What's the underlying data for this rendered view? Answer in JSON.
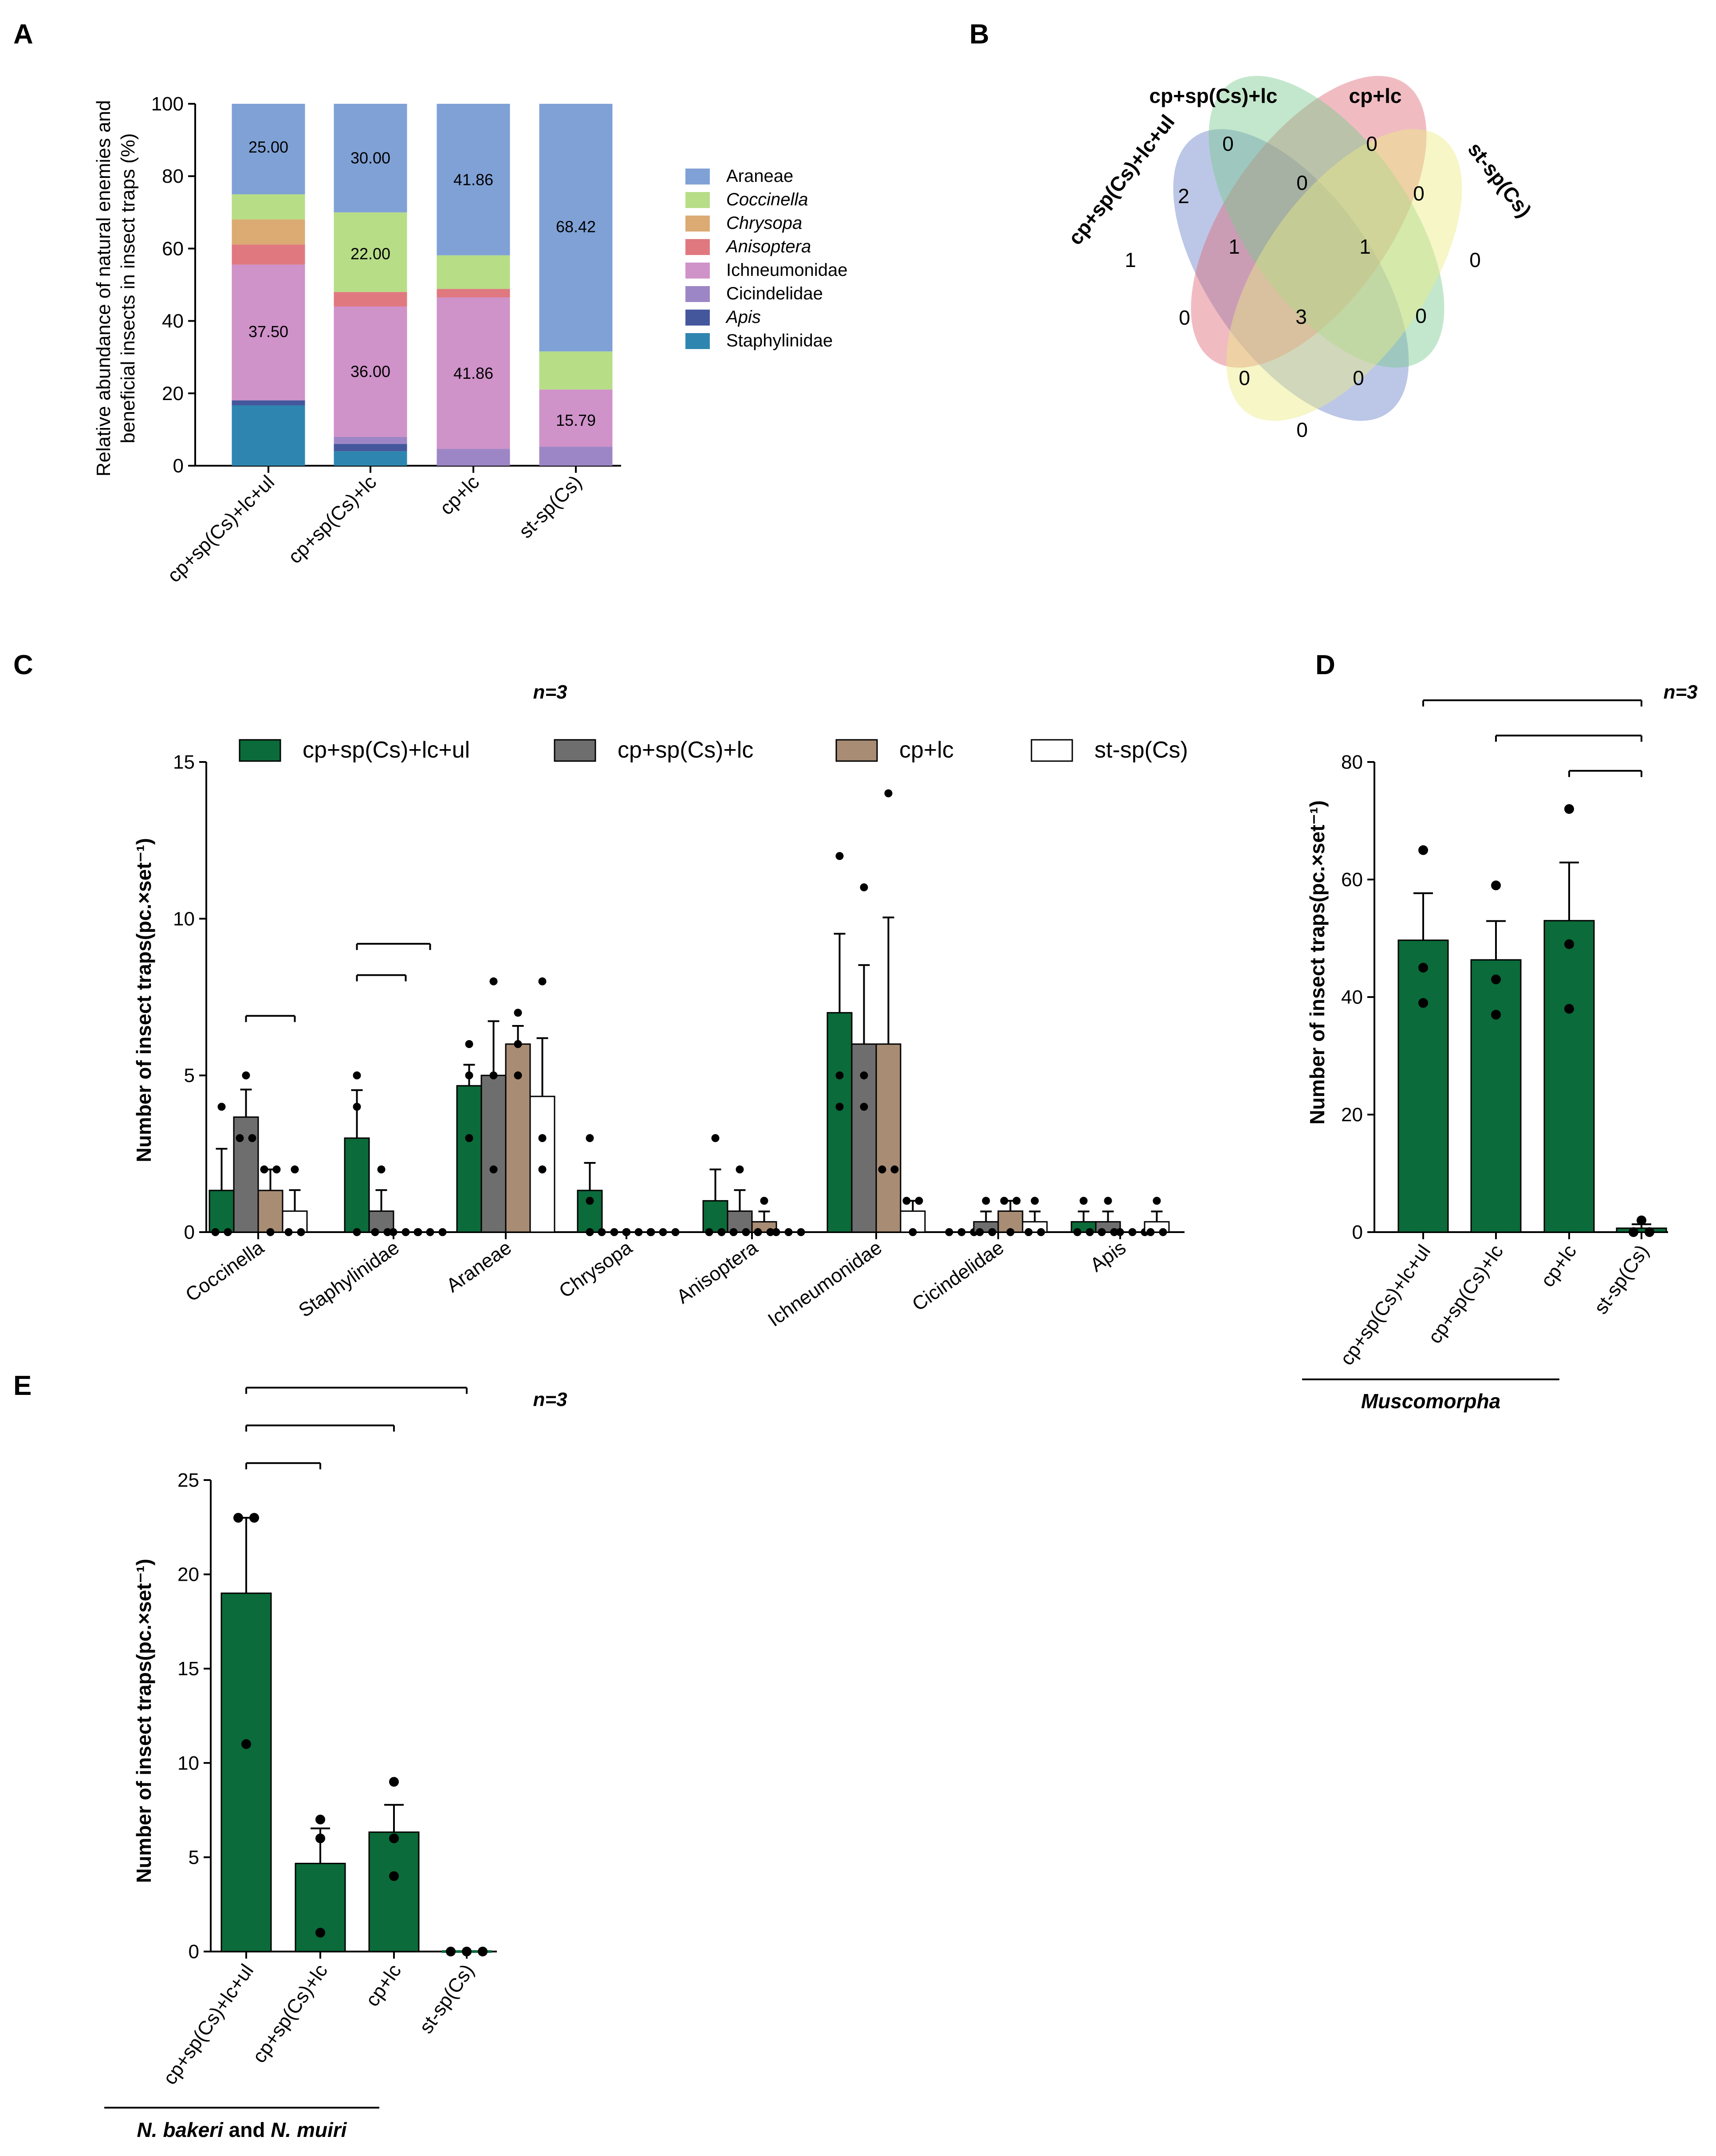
{
  "panels": {
    "a": "A",
    "b": "B",
    "c": "C",
    "d": "D",
    "e": "E"
  },
  "n_label": "n=3",
  "chart_data": [
    {
      "id": "A",
      "type": "bar",
      "stacked": true,
      "ylabel_line1": "Relative abundance of natural enemies and",
      "ylabel_line2": "beneficial insects in insect traps (%)",
      "ylim": [
        0,
        100
      ],
      "yticks": [
        "0",
        "20",
        "40",
        "60",
        "80",
        "100"
      ],
      "categories": [
        "cp+sp(Cs)+lc+ul",
        "cp+sp(Cs)+lc",
        "cp+lc",
        "st-sp(Cs)"
      ],
      "series": [
        {
          "name": "Staphylinidae",
          "italic": false,
          "color": "#2e86b0",
          "values": [
            16.67,
            4.0,
            0,
            0
          ]
        },
        {
          "name": "Apis",
          "italic": true,
          "color": "#45579c",
          "values": [
            1.39,
            2.0,
            0,
            0
          ]
        },
        {
          "name": "Cicindelidae",
          "italic": false,
          "color": "#9d86c5",
          "values": [
            0,
            2.0,
            4.65,
            5.26
          ]
        },
        {
          "name": "Ichneumonidae",
          "italic": false,
          "color": "#cf92c9",
          "values": [
            37.5,
            36.0,
            41.86,
            15.79
          ]
        },
        {
          "name": "Anisoptera",
          "italic": true,
          "color": "#e07880",
          "values": [
            5.56,
            4.0,
            2.33,
            0
          ]
        },
        {
          "name": "Chrysopa",
          "italic": true,
          "color": "#dbab73",
          "values": [
            6.94,
            0,
            0,
            0
          ]
        },
        {
          "name": "Coccinella",
          "italic": true,
          "color": "#b7dd87",
          "values": [
            6.94,
            22.0,
            9.3,
            10.53
          ]
        },
        {
          "name": "Araneae",
          "italic": false,
          "color": "#7fa1d6",
          "values": [
            25.0,
            30.0,
            41.86,
            68.42
          ]
        }
      ],
      "data_labels": [
        {
          "cat": 0,
          "y": 88,
          "text": "25.00"
        },
        {
          "cat": 0,
          "y": 37,
          "text": "37.50"
        },
        {
          "cat": 1,
          "y": 85,
          "text": "30.00"
        },
        {
          "cat": 1,
          "y": 58.5,
          "text": "22.00"
        },
        {
          "cat": 1,
          "y": 26,
          "text": "36.00"
        },
        {
          "cat": 2,
          "y": 79,
          "text": "41.86"
        },
        {
          "cat": 2,
          "y": 25.5,
          "text": "41.86"
        },
        {
          "cat": 3,
          "y": 66,
          "text": "68.42"
        },
        {
          "cat": 3,
          "y": 12.5,
          "text": "15.79"
        }
      ],
      "legend_order": [
        "Araneae",
        "Coccinella",
        "Chrysopa",
        "Anisoptera",
        "Ichneumonidae",
        "Cicindelidae",
        "Apis",
        "Staphylinidae"
      ]
    },
    {
      "id": "B",
      "type": "venn",
      "sets": [
        "cp+sp(Cs)+lc+ul",
        "cp+sp(Cs)+lc",
        "cp+lc",
        "st-sp(Cs)"
      ],
      "set_colors": [
        "#6b82c9",
        "#de6b78",
        "#79c98e",
        "#eaea82"
      ],
      "regions": [
        {
          "sets": [
            "cp+sp(Cs)+lc+ul"
          ],
          "count": "1"
        },
        {
          "sets": [
            "cp+sp(Cs)+lc"
          ],
          "count": "0"
        },
        {
          "sets": [
            "cp+lc"
          ],
          "count": "0"
        },
        {
          "sets": [
            "st-sp(Cs)"
          ],
          "count": "0"
        },
        {
          "sets": [
            "cp+sp(Cs)+lc+ul",
            "cp+sp(Cs)+lc"
          ],
          "count": "2"
        },
        {
          "sets": [
            "cp+sp(Cs)+lc",
            "cp+lc"
          ],
          "count": "0"
        },
        {
          "sets": [
            "cp+lc",
            "st-sp(Cs)"
          ],
          "count": "0"
        },
        {
          "sets": [
            "cp+sp(Cs)+lc+ul",
            "cp+lc"
          ],
          "count": "0"
        },
        {
          "sets": [
            "cp+sp(Cs)+lc",
            "st-sp(Cs)"
          ],
          "count": "0"
        },
        {
          "sets": [
            "cp+sp(Cs)+lc+ul",
            "st-sp(Cs)"
          ],
          "count": "0"
        },
        {
          "sets": [
            "cp+sp(Cs)+lc+ul",
            "cp+sp(Cs)+lc",
            "cp+lc"
          ],
          "count": "1"
        },
        {
          "sets": [
            "cp+sp(Cs)+lc",
            "cp+lc",
            "st-sp(Cs)"
          ],
          "count": "1"
        },
        {
          "sets": [
            "cp+sp(Cs)+lc+ul",
            "cp+lc",
            "st-sp(Cs)"
          ],
          "count": "0"
        },
        {
          "sets": [
            "cp+sp(Cs)+lc+ul",
            "cp+sp(Cs)+lc",
            "st-sp(Cs)"
          ],
          "count": "0"
        },
        {
          "sets": [
            "cp+sp(Cs)+lc+ul",
            "cp+sp(Cs)+lc",
            "cp+lc",
            "st-sp(Cs)"
          ],
          "count": "3"
        }
      ]
    },
    {
      "id": "C",
      "type": "bar",
      "grouped": true,
      "ylabel": "Number of insect traps(pc.×set⁻¹)",
      "ylim": [
        0,
        15
      ],
      "yticks": [
        "0",
        "5",
        "10",
        "15"
      ],
      "categories": [
        "Coccinella",
        "Staphylinidae",
        "Araneae",
        "Chrysopa",
        "Anisoptera",
        "Ichneumonidae",
        "Cicindelidae",
        "Apis"
      ],
      "series": [
        {
          "name": "cp+sp(Cs)+lc+ul",
          "color": "#0b6b3a",
          "values": [
            1.33,
            3.0,
            4.67,
            1.33,
            1.0,
            7.0,
            0,
            0.33
          ],
          "err": [
            1.33,
            1.53,
            0.67,
            0.88,
            1.0,
            2.52,
            0,
            0.33
          ],
          "points": [
            [
              4,
              0,
              0
            ],
            [
              5,
              4,
              0
            ],
            [
              6,
              5,
              3
            ],
            [
              3,
              1,
              0
            ],
            [
              3,
              0,
              0
            ],
            [
              12,
              5,
              4
            ],
            [
              0,
              0,
              0
            ],
            [
              1,
              0,
              0
            ]
          ]
        },
        {
          "name": "cp+sp(Cs)+lc",
          "color": "#6e6e6e",
          "values": [
            3.67,
            0.67,
            5.0,
            0,
            0.67,
            6.0,
            0.33,
            0.33
          ],
          "err": [
            0.88,
            0.67,
            1.73,
            0,
            0.67,
            2.52,
            0.33,
            0.33
          ],
          "points": [
            [
              5,
              3,
              3
            ],
            [
              2,
              0,
              0
            ],
            [
              8,
              5,
              2
            ],
            [
              0,
              0,
              0
            ],
            [
              2,
              0,
              0
            ],
            [
              11,
              5,
              4
            ],
            [
              1,
              0,
              0
            ],
            [
              1,
              0,
              0
            ]
          ]
        },
        {
          "name": "cp+lc",
          "color": "#a88c74",
          "values": [
            1.33,
            0,
            6.0,
            0,
            0.33,
            6.0,
            0.67,
            0
          ],
          "err": [
            0.67,
            0,
            0.58,
            0,
            0.33,
            4.04,
            0.33,
            0
          ],
          "points": [
            [
              2,
              2,
              0
            ],
            [
              0,
              0,
              0
            ],
            [
              7,
              6,
              5
            ],
            [
              0,
              0,
              0
            ],
            [
              1,
              0,
              0
            ],
            [
              14,
              2,
              2
            ],
            [
              1,
              1,
              0
            ],
            [
              0,
              0,
              0
            ]
          ]
        },
        {
          "name": "st-sp(Cs)",
          "color": "#ffffff",
          "values": [
            0.67,
            0,
            4.33,
            0,
            0,
            0.67,
            0.33,
            0.33
          ],
          "err": [
            0.67,
            0,
            1.86,
            0,
            0,
            0.33,
            0.33,
            0.33
          ],
          "points": [
            [
              2,
              0,
              0
            ],
            [
              0,
              0,
              0
            ],
            [
              8,
              3,
              2
            ],
            [
              0,
              0,
              0
            ],
            [
              0,
              0,
              0
            ],
            [
              1,
              1,
              0
            ],
            [
              1,
              0,
              0
            ],
            [
              1,
              0,
              0
            ]
          ]
        }
      ],
      "significance": [
        {
          "cat": 0,
          "from": 1,
          "to": 3,
          "y": 6.9,
          "label": "*"
        },
        {
          "cat": 1,
          "from": 0,
          "to": 2,
          "y": 8.2,
          "label": "*"
        },
        {
          "cat": 1,
          "from": 0,
          "to": 3,
          "y": 9.2,
          "label": "*"
        }
      ]
    },
    {
      "id": "D",
      "type": "bar",
      "ylabel": "Number of insect traps(pc.×set⁻¹)",
      "ylim": [
        0,
        80
      ],
      "yticks": [
        "0",
        "20",
        "40",
        "60",
        "80"
      ],
      "categories": [
        "cp+sp(Cs)+lc+ul",
        "cp+sp(Cs)+lc",
        "cp+lc",
        "st-sp(Cs)"
      ],
      "values": [
        49.67,
        46.33,
        53.0,
        0.67
      ],
      "err": [
        8.0,
        6.6,
        9.9,
        0.67
      ],
      "points": [
        [
          65,
          45,
          39
        ],
        [
          59,
          43,
          37
        ],
        [
          72,
          49,
          38
        ],
        [
          2,
          0,
          0
        ]
      ],
      "color": "#0b6b3a",
      "significance": [
        {
          "from": 0,
          "to": 3,
          "y": 90.5,
          "label": "**"
        },
        {
          "from": 1,
          "to": 3,
          "y": 84.5,
          "label": "**"
        },
        {
          "from": 2,
          "to": 3,
          "y": 78.5,
          "label": "**"
        }
      ],
      "taxon": "Muscomorpha"
    },
    {
      "id": "E",
      "type": "bar",
      "ylabel": "Number of insect traps(pc.×set⁻¹)",
      "ylim": [
        0,
        25
      ],
      "yticks": [
        "0",
        "5",
        "10",
        "15",
        "20",
        "25"
      ],
      "categories": [
        "cp+sp(Cs)+lc+ul",
        "cp+sp(Cs)+lc",
        "cp+lc",
        "st-sp(Cs)"
      ],
      "values": [
        19.0,
        4.67,
        6.33,
        0
      ],
      "err": [
        4.0,
        1.86,
        1.45,
        0
      ],
      "points": [
        [
          23,
          23,
          11
        ],
        [
          7,
          6,
          1
        ],
        [
          9,
          6,
          4
        ],
        [
          0,
          0,
          0
        ]
      ],
      "color": "#0b6b3a",
      "significance": [
        {
          "from": 0,
          "to": 1,
          "y": 25.9,
          "label": "**"
        },
        {
          "from": 0,
          "to": 2,
          "y": 27.9,
          "label": "*"
        },
        {
          "from": 0,
          "to": 3,
          "y": 29.9,
          "label": "**"
        }
      ],
      "taxon_parts": [
        "N. bakeri",
        " and ",
        "N. muiri"
      ]
    }
  ]
}
